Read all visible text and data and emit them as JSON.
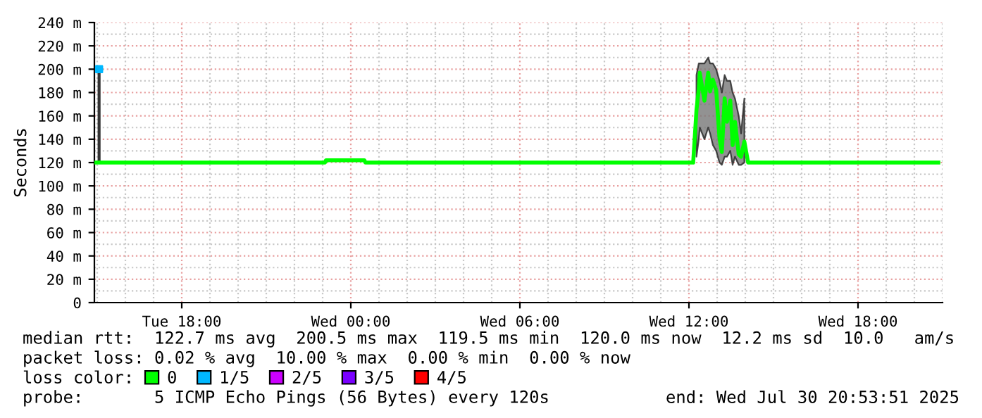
{
  "chart_data": {
    "type": "line",
    "ylabel": "Seconds",
    "legend_title": "loss color:",
    "legend": "bottom",
    "grid": true,
    "marker": "none",
    "line_style": "solid",
    "xlim": [
      "2025-07-29T14:54",
      "2025-07-30T21:00"
    ],
    "xticks": [
      {
        "value": "2025-07-29T18:00",
        "label": "Tue 18:00"
      },
      {
        "value": "2025-07-30T00:00",
        "label": "Wed 00:00"
      },
      {
        "value": "2025-07-30T06:00",
        "label": "Wed 06:00"
      },
      {
        "value": "2025-07-30T12:00",
        "label": "Wed 12:00"
      },
      {
        "value": "2025-07-30T18:00",
        "label": "Wed 18:00"
      }
    ],
    "ylim": [
      0,
      240
    ],
    "yticks": [
      0,
      {
        "value": 20,
        "label": "20 m"
      },
      {
        "value": 40,
        "label": "40 m"
      },
      {
        "value": 60,
        "label": "60 m"
      },
      {
        "value": 80,
        "label": "80 m"
      },
      {
        "value": 100,
        "label": "100 m"
      },
      {
        "value": 120,
        "label": "120 m"
      },
      {
        "value": 140,
        "label": "140 m"
      },
      {
        "value": 160,
        "label": "160 m"
      },
      {
        "value": 180,
        "label": "180 m"
      },
      {
        "value": 200,
        "label": "200 m"
      },
      {
        "value": 220,
        "label": "220 m"
      },
      {
        "value": 240,
        "label": "240 m"
      }
    ],
    "series": [
      {
        "name": "0",
        "color": "#00ff00",
        "x": [
          "2025-07-29T14:57",
          "2025-07-29T23:05",
          "2025-07-29T23:07",
          "2025-07-30T00:29",
          "2025-07-30T00:31",
          "2025-07-30T12:09",
          "2025-07-30T12:16",
          "2025-07-30T12:21",
          "2025-07-30T12:23",
          "2025-07-30T12:33",
          "2025-07-30T12:41",
          "2025-07-30T12:45",
          "2025-07-30T12:51",
          "2025-07-30T12:58",
          "2025-07-30T13:05",
          "2025-07-30T13:10",
          "2025-07-30T13:16",
          "2025-07-30T13:21",
          "2025-07-30T13:28",
          "2025-07-30T13:33",
          "2025-07-30T13:38",
          "2025-07-30T13:46",
          "2025-07-30T13:51",
          "2025-07-30T13:58",
          "2025-07-30T14:06",
          "2025-07-30T20:51"
        ],
        "values": [
          120,
          120,
          122,
          122,
          120,
          120,
          165,
          183,
          197,
          173,
          197,
          181,
          191,
          182,
          141,
          129,
          175,
          155,
          173,
          135,
          155,
          127,
          125,
          138,
          120,
          120
        ],
        "lower": [
          null,
          null,
          null,
          null,
          null,
          null,
          125,
          140,
          150,
          140,
          150,
          145,
          135,
          130,
          120,
          118,
          125,
          125,
          130,
          118,
          125,
          118,
          118,
          120,
          null,
          null
        ],
        "upper": [
          null,
          null,
          null,
          null,
          null,
          null,
          195,
          205,
          205,
          205,
          210,
          205,
          205,
          200,
          190,
          180,
          195,
          190,
          190,
          180,
          175,
          160,
          145,
          175,
          null,
          null
        ]
      },
      {
        "name": "1/5",
        "type": "scatter",
        "color": "#00b8ff",
        "x": [
          "2025-07-29T15:04"
        ],
        "values": [
          200
        ],
        "marker": "square",
        "errors": [
          [
            120,
            200
          ]
        ]
      },
      {
        "name": "2/5",
        "color": "#cc00ff"
      },
      {
        "name": "3/5",
        "color": "#7a00ff"
      },
      {
        "name": "4/5",
        "color": "#ff0000"
      }
    ],
    "annotations": [
      "median rtt:  122.7 ms avg  200.5 ms max  119.5 ms min  120.0 ms now  12.2 ms sd  10.0   am/s",
      "packet loss: 0.02 % avg  10.00 % max  0.00 % min  0.00 % now",
      "probe:       5 ICMP Echo Pings (56 Bytes) every 120s",
      "end: Wed Jul 30 20:53:51 2025"
    ]
  }
}
